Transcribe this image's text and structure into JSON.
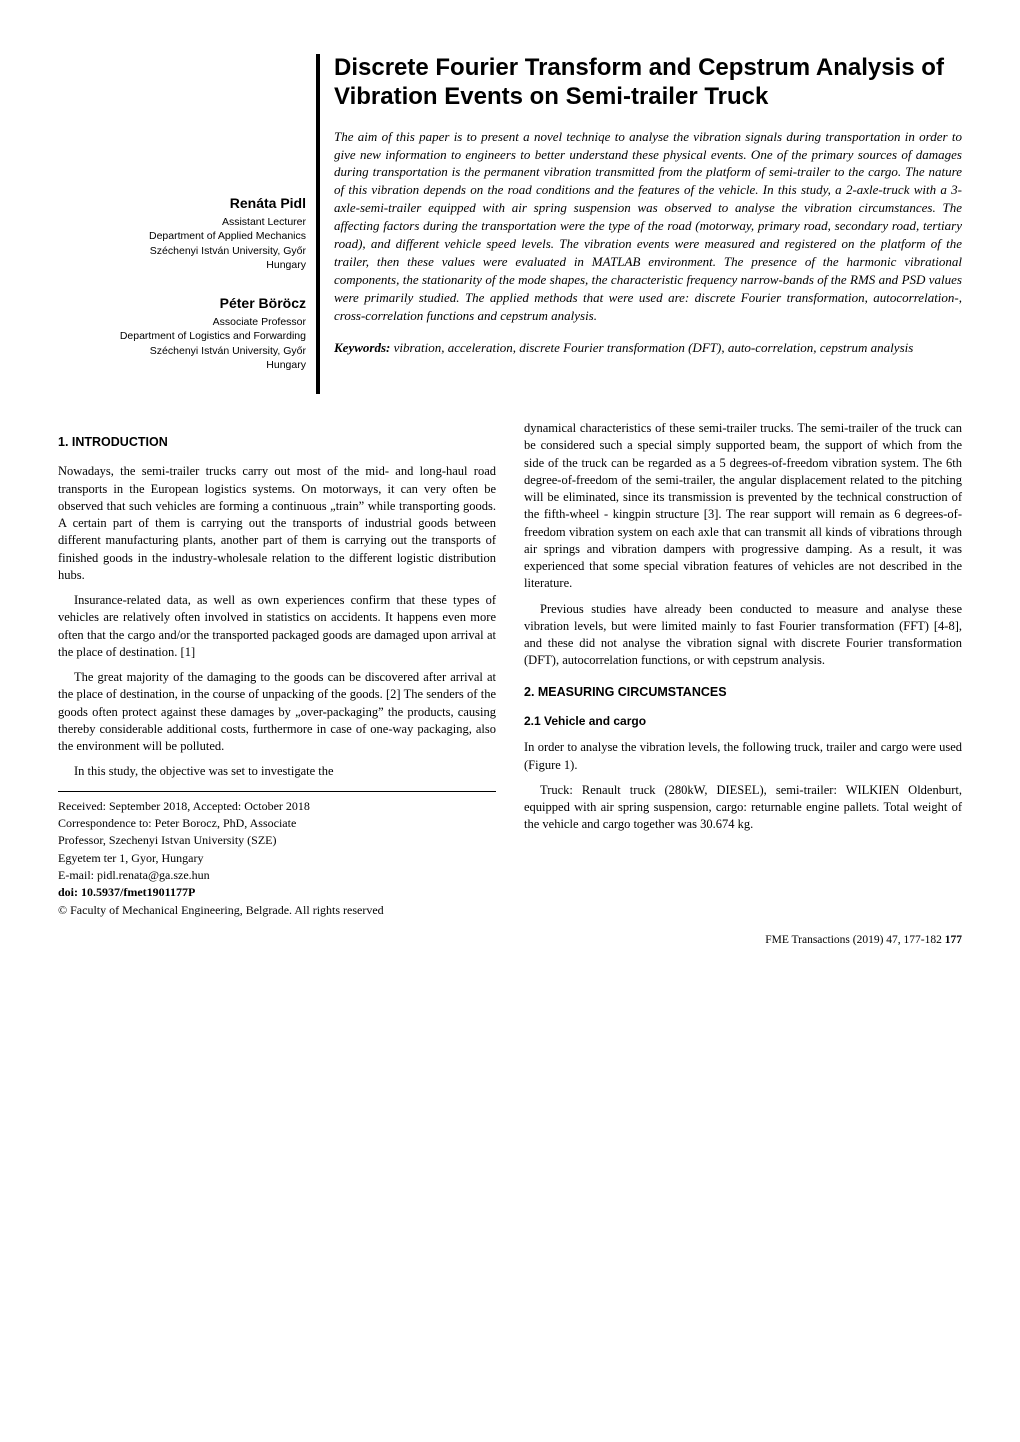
{
  "title": "Discrete Fourier Transform and Cepstrum Analysis of Vibration Events on Semi-trailer Truck",
  "authors": [
    {
      "name": "Renáta Pidl",
      "role": "Assistant Lecturer",
      "dept": "Department of Applied Mechanics",
      "univ": "Széchenyi István University, Győr",
      "country": "Hungary"
    },
    {
      "name": "Péter Böröcz",
      "role": "Associate Professor",
      "dept": "Department of Logistics and Forwarding",
      "univ": "Széchenyi István University, Győr",
      "country": "Hungary"
    }
  ],
  "abstract": "The aim of this paper is to present a novel techniqe to analyse the vibration signals during transportation in order to give new information to engineers to better understand these physical events. One of the primary sources of damages during transportation is the permanent vibration transmitted from the platform of semi-trailer to the cargo. The nature of this vibration depends on the road conditions and the features of the vehicle. In this study, a 2-axle-truck with a 3-axle-semi-trailer equipped with air spring suspension was observed to analyse the vibration circumstances. The affecting factors during the transportation were the type of the road (motorway, primary road, secondary road, tertiary road), and different vehicle speed levels. The vibration events were measured and registered on the platform of the trailer, then these values were evaluated in MATLAB environment. The presence of the harmonic vibrational components, the stationarity of the mode shapes, the characteristic frequency narrow-bands of the RMS and PSD values were primarily studied. The applied methods that were used are: discrete Fourier transformation, autocorrelation-, cross-correlation functions and cepstrum analysis.",
  "keywords_label": "Keywords:",
  "keywords_text": " vibration, acceleration, discrete Fourier transformation (DFT), auto-correlation, cepstrum analysis",
  "headings": {
    "s1": "1.   INTRODUCTION",
    "s2": "2.   MEASURING CIRCUMSTANCES",
    "s21": "2.1  Vehicle and cargo"
  },
  "paras": {
    "p1": "Nowadays, the semi-trailer trucks carry out most of the mid- and long-haul road transports in the European logistics systems. On motorways, it can very often be observed that such vehicles are forming a continuous „train” while transporting goods. A certain part of them is carrying out the transports of industrial goods between different manufacturing plants, another part of them is carrying out the transports of finished goods in the industry-wholesale relation to the different logistic distribution hubs.",
    "p2": "Insurance-related data, as well as own experiences confirm that these types of vehicles are relatively often involved in statistics on accidents. It happens even more often that the cargo and/or the transported packaged goods are damaged upon arrival at the place of destination. [1]",
    "p3": "The great majority of the damaging to the goods can be discovered after arrival at the place of destination, in the course of unpacking of the goods. [2] The senders of the goods often protect against these damages by „over-packaging” the products, causing thereby considerable additional costs, furthermore in case of one-way packaging, also the environment will be polluted.",
    "p4": "In this study, the objective was set to investigate the",
    "p5": "dynamical characteristics of these semi-trailer trucks. The semi-trailer of the truck can be considered such a special simply supported beam, the support of which from the side of the truck can be regarded as a 5 degrees-of-freedom vibration system. The 6th degree-of-freedom of the semi-trailer, the angular displacement related to the pitching will be eliminated, since its transmission is prevented by the technical construction of the fifth-wheel - kingpin structure [3]. The rear support will remain as 6 degrees-of-freedom vibration system on each axle that can transmit all kinds of vibrations through air springs and vibration dampers with progressive damping. As a result, it was experienced that some special vibration features of vehicles are not described in the literature.",
    "p6": "Previous studies have already been conducted to measure and analyse these vibration levels, but were limited mainly to fast Fourier transformation (FFT) [4-8], and these did not analyse the vibration signal with discrete Fourier transformation (DFT), autocorrelation functions, or with cepstrum analysis.",
    "p7": "In order to analyse the vibration levels, the following truck, trailer and cargo were used (Figure 1).",
    "p8": "Truck: Renault truck (280kW, DIESEL), semi-trailer: WILKIEN Oldenburt, equipped with air spring suspension, cargo: returnable engine pallets. Total weight of the vehicle and cargo together was 30.674 kg."
  },
  "footnote": {
    "l1": "Received: September 2018, Accepted: October 2018",
    "l2": "Correspondence to: Peter Borocz, PhD, Associate",
    "l3": "Professor, Szechenyi Istvan University (SZE)",
    "l4": "Egyetem ter 1, Gyor, Hungary",
    "l5": "E-mail: pidl.renata@ga.sze.hun",
    "doi": "doi: 10.5937/fmet1901177P",
    "copyright": "© Faculty of Mechanical Engineering, Belgrade. All rights reserved"
  },
  "footer": {
    "right_a": "FME Transactions (2019) 47, 177-182  ",
    "right_b": "177"
  }
}
